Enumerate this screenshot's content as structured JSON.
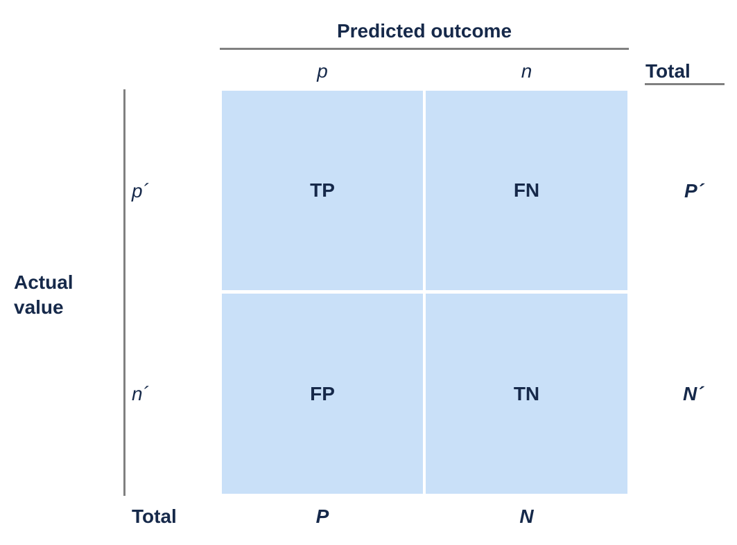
{
  "header": {
    "predicted_title": "Predicted outcome",
    "col_labels": [
      "p",
      "n"
    ],
    "total_label": "Total"
  },
  "side": {
    "actual_label_line1": "Actual",
    "actual_label_line2": "value",
    "row_labels": [
      "p´",
      "n´"
    ]
  },
  "matrix": {
    "cells": [
      "TP",
      "FN",
      "FP",
      "TN"
    ]
  },
  "totals": {
    "row_totals": [
      "P´",
      "N´"
    ],
    "bottom_label": "Total",
    "col_totals": [
      "P",
      "N"
    ]
  },
  "colors": {
    "cell_fill": "#c9e0f8",
    "text": "#16294a",
    "rule": "#808080"
  }
}
